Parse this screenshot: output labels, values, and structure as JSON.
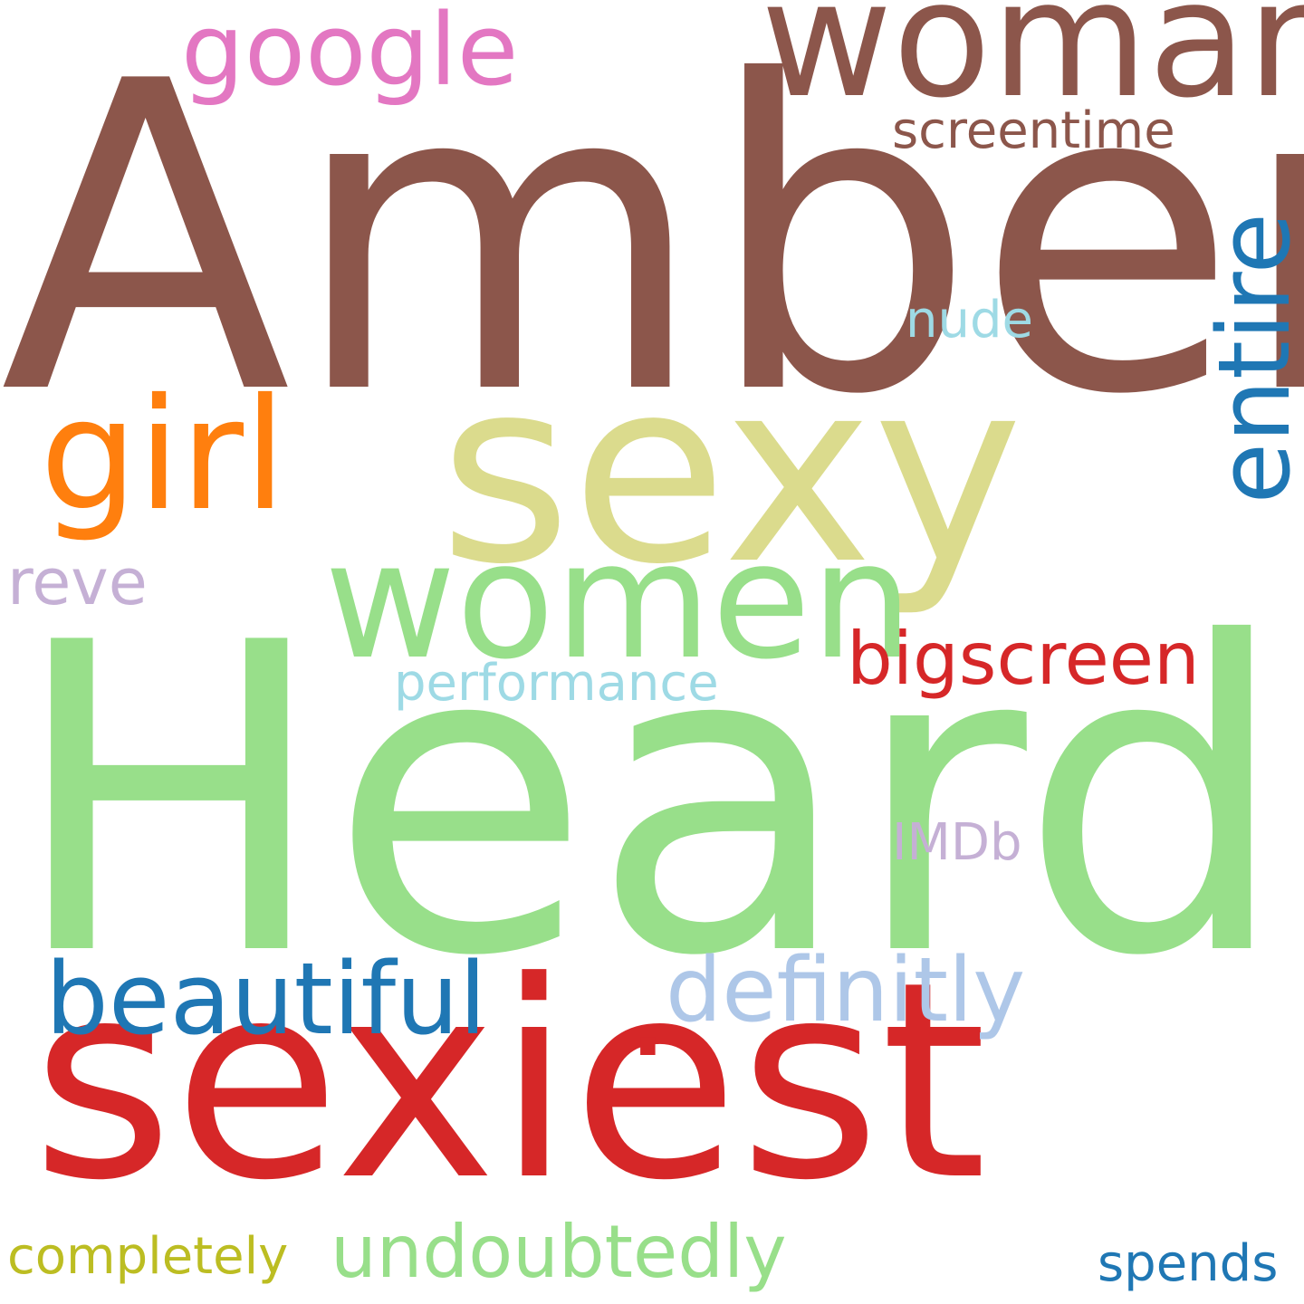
{
  "words": [
    {
      "text": "Amber",
      "color": "#8c564b"
    },
    {
      "text": "Heard",
      "color": "#98df8a"
    },
    {
      "text": "sexiest",
      "color": "#d62728"
    },
    {
      "text": "sexy",
      "color": "#dbdb8d"
    },
    {
      "text": "woman",
      "color": "#8c564b"
    },
    {
      "text": "women",
      "color": "#98df8a"
    },
    {
      "text": "girl",
      "color": "#ff7f0e"
    },
    {
      "text": "entire",
      "color": "#1f77b4"
    },
    {
      "text": "google",
      "color": "#e377c2"
    },
    {
      "text": "beautiful",
      "color": "#1f77b4"
    },
    {
      "text": "definitly",
      "color": "#aec7e8"
    },
    {
      "text": "bigscreen",
      "color": "#d62728"
    },
    {
      "text": "undoubtedly",
      "color": "#98df8a"
    },
    {
      "text": "reve",
      "color": "#c5b0d5"
    },
    {
      "text": "performance",
      "color": "#9edae5"
    },
    {
      "text": "screentime",
      "color": "#8c564b"
    },
    {
      "text": "completely",
      "color": "#bcbd22"
    },
    {
      "text": "IMDb",
      "color": "#c5b0d5"
    },
    {
      "text": "nude",
      "color": "#9edae5"
    },
    {
      "text": "spends",
      "color": "#1f77b4"
    },
    {
      "text": ".",
      "color": "#d62728"
    }
  ]
}
